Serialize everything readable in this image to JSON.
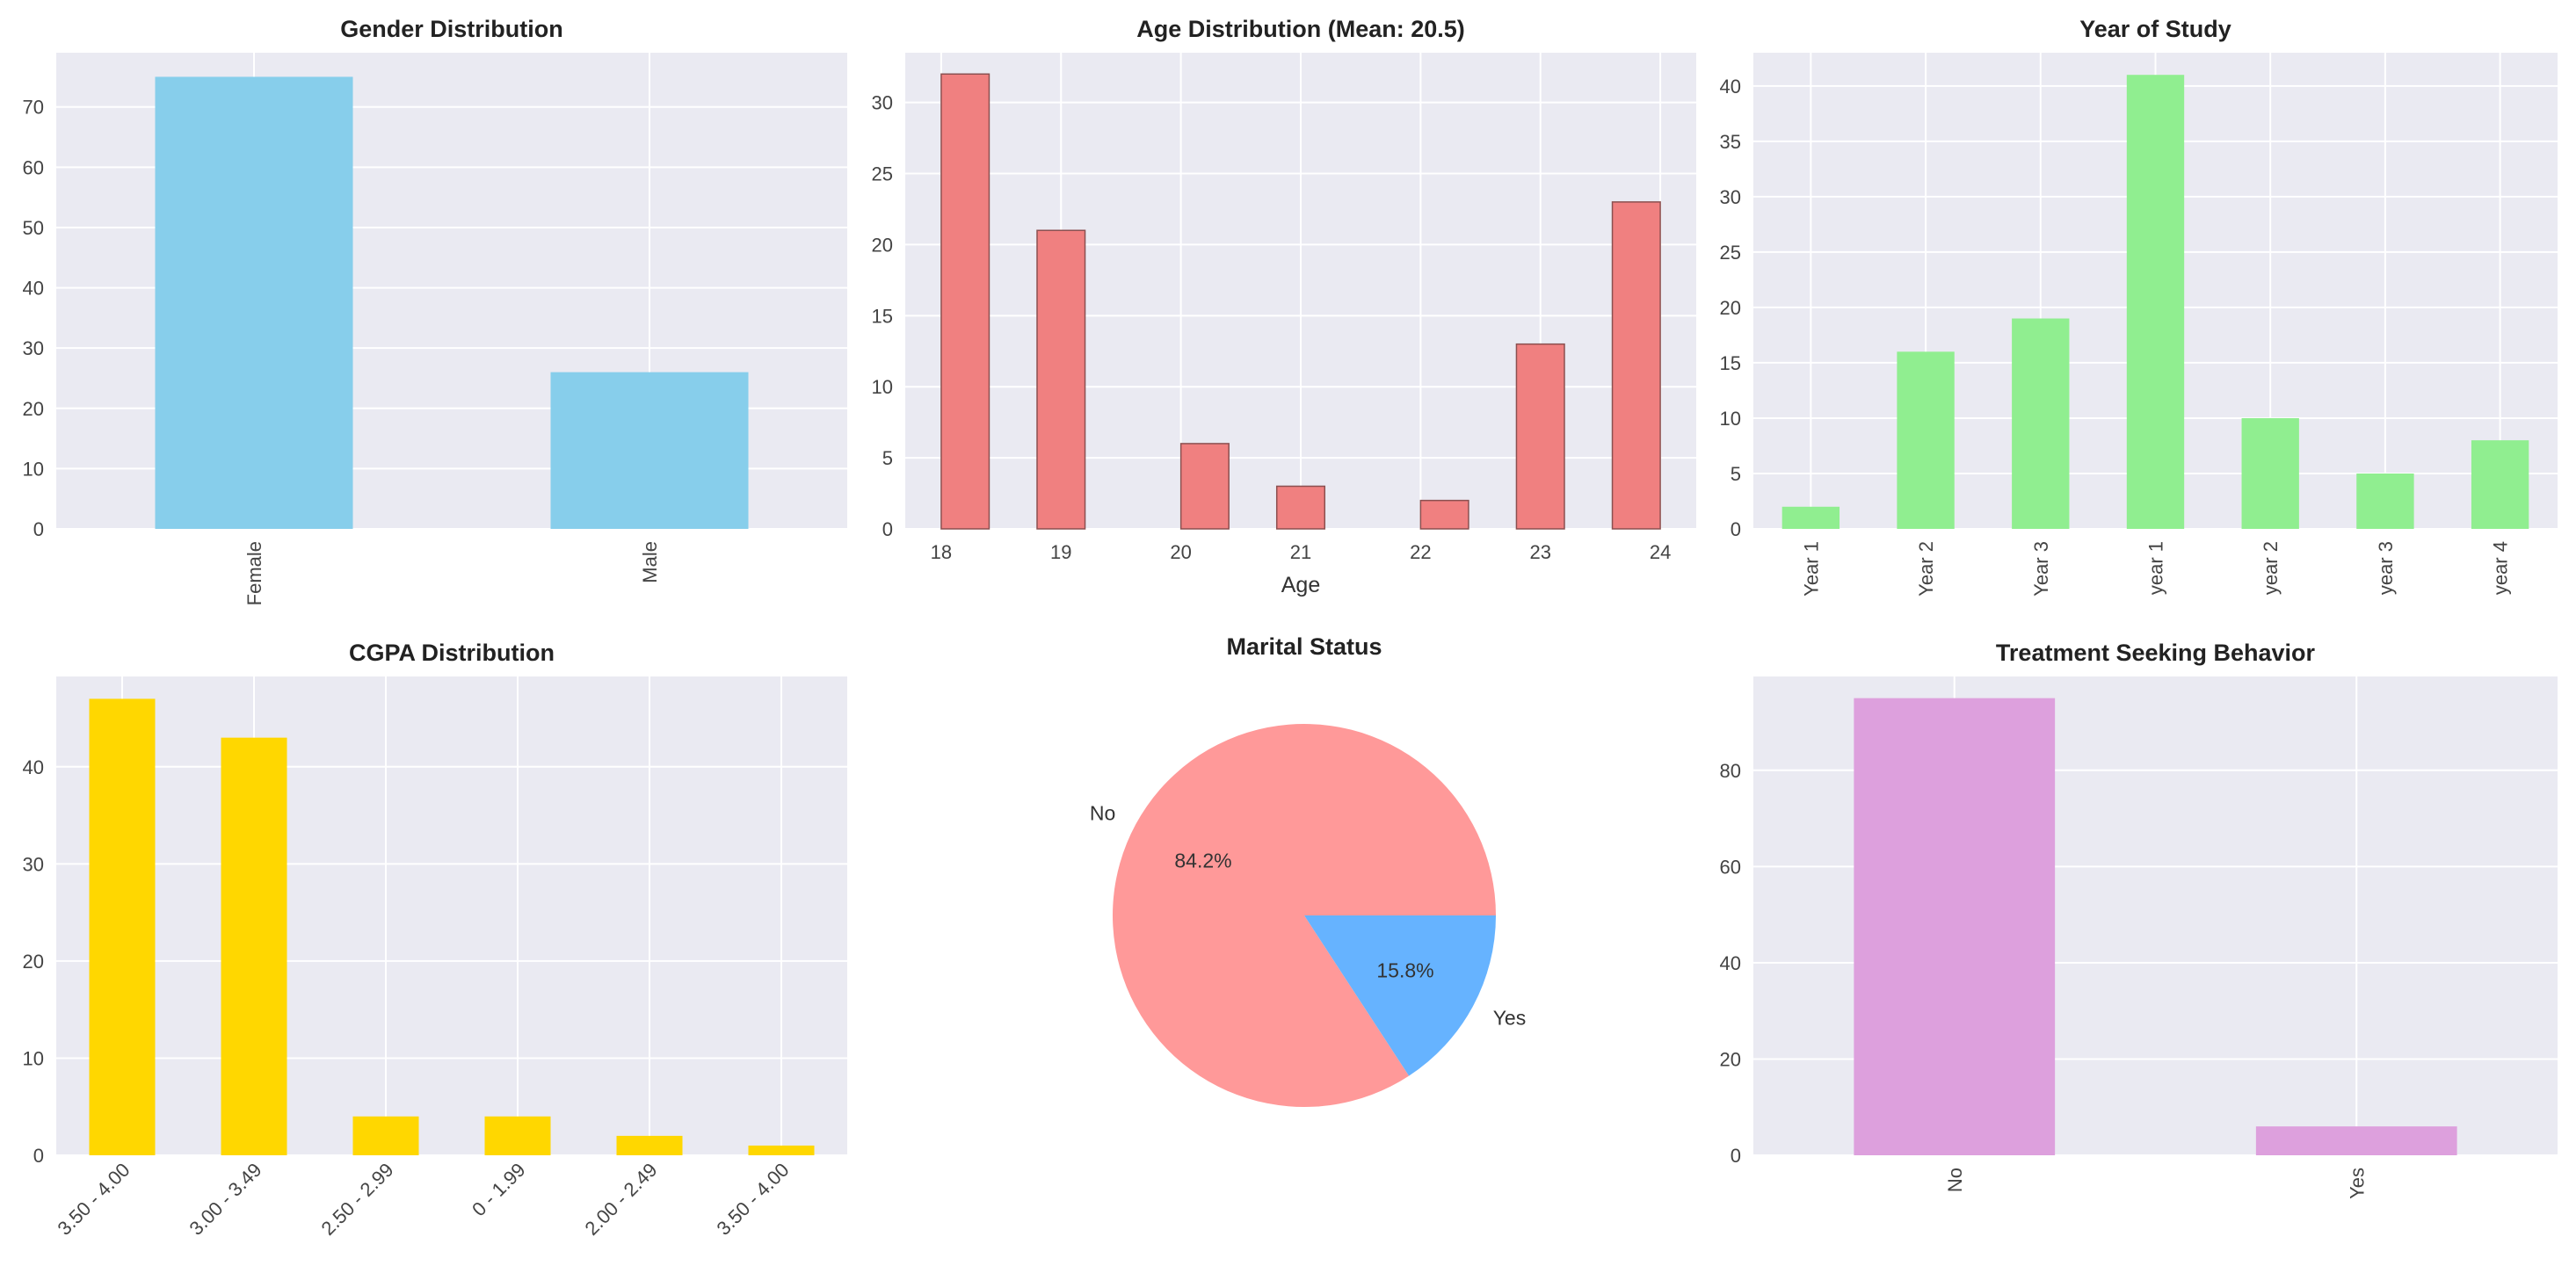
{
  "chart_data": [
    {
      "id": "gender",
      "type": "bar",
      "title": "Gender Distribution",
      "categories": [
        "Female",
        "Male"
      ],
      "values": [
        75,
        26
      ],
      "yticks": [
        0,
        10,
        20,
        30,
        40,
        50,
        60,
        70
      ],
      "ylim": [
        0,
        79
      ],
      "xlabel": "",
      "color": "#87ceeb",
      "label_rotation": "vertical"
    },
    {
      "id": "age",
      "type": "histogram",
      "title": "Age Distribution (Mean: 20.5)",
      "xlabel": "Age",
      "xlim": [
        17.7,
        24.3
      ],
      "ylim": [
        0,
        33.5
      ],
      "yticks": [
        0,
        5,
        10,
        15,
        20,
        25,
        30
      ],
      "xticks": [
        18,
        19,
        20,
        21,
        22,
        23,
        24
      ],
      "bars": [
        {
          "left": 18.0,
          "width": 0.4,
          "value": 32
        },
        {
          "left": 18.8,
          "width": 0.4,
          "value": 21
        },
        {
          "left": 20.0,
          "width": 0.4,
          "value": 6
        },
        {
          "left": 20.8,
          "width": 0.4,
          "value": 3
        },
        {
          "left": 22.0,
          "width": 0.4,
          "value": 2
        },
        {
          "left": 22.8,
          "width": 0.4,
          "value": 13
        },
        {
          "left": 23.6,
          "width": 0.4,
          "value": 23
        }
      ],
      "color": "#f08080",
      "edgecolor": "#8b5050"
    },
    {
      "id": "year",
      "type": "bar",
      "title": "Year of Study",
      "categories": [
        "Year 1",
        "Year 2",
        "Year 3",
        "year 1",
        "year 2",
        "year 3",
        "year 4"
      ],
      "values": [
        2,
        16,
        19,
        41,
        10,
        5,
        8
      ],
      "yticks": [
        0,
        5,
        10,
        15,
        20,
        25,
        30,
        35,
        40
      ],
      "ylim": [
        0,
        43
      ],
      "xlabel": "",
      "color": "#90ee90",
      "label_rotation": "vertical"
    },
    {
      "id": "cgpa",
      "type": "bar",
      "title": "CGPA Distribution",
      "categories": [
        "3.50 - 4.00",
        "3.00 - 3.49",
        "2.50 - 2.99",
        "0 - 1.99",
        "2.00 - 2.49",
        "3.50 - 4.00"
      ],
      "values": [
        47,
        43,
        4,
        4,
        2,
        1
      ],
      "yticks": [
        0,
        10,
        20,
        30,
        40
      ],
      "ylim": [
        0,
        49.3
      ],
      "xlabel": "",
      "color": "#ffd700",
      "label_rotation": "diagonal"
    },
    {
      "id": "marital",
      "type": "pie",
      "title": "Marital Status",
      "labels": [
        "No",
        "Yes"
      ],
      "values": [
        84.2,
        15.8
      ],
      "autopct": [
        "84.2%",
        "15.8%"
      ],
      "colors": [
        "#ff9999",
        "#66b3ff"
      ]
    },
    {
      "id": "treatment",
      "type": "bar",
      "title": "Treatment Seeking Behavior",
      "categories": [
        "No",
        "Yes"
      ],
      "values": [
        95,
        6
      ],
      "yticks": [
        0,
        20,
        40,
        60,
        80
      ],
      "ylim": [
        0,
        99.5
      ],
      "xlabel": "",
      "color": "#dda0dd",
      "label_rotation": "vertical"
    }
  ]
}
